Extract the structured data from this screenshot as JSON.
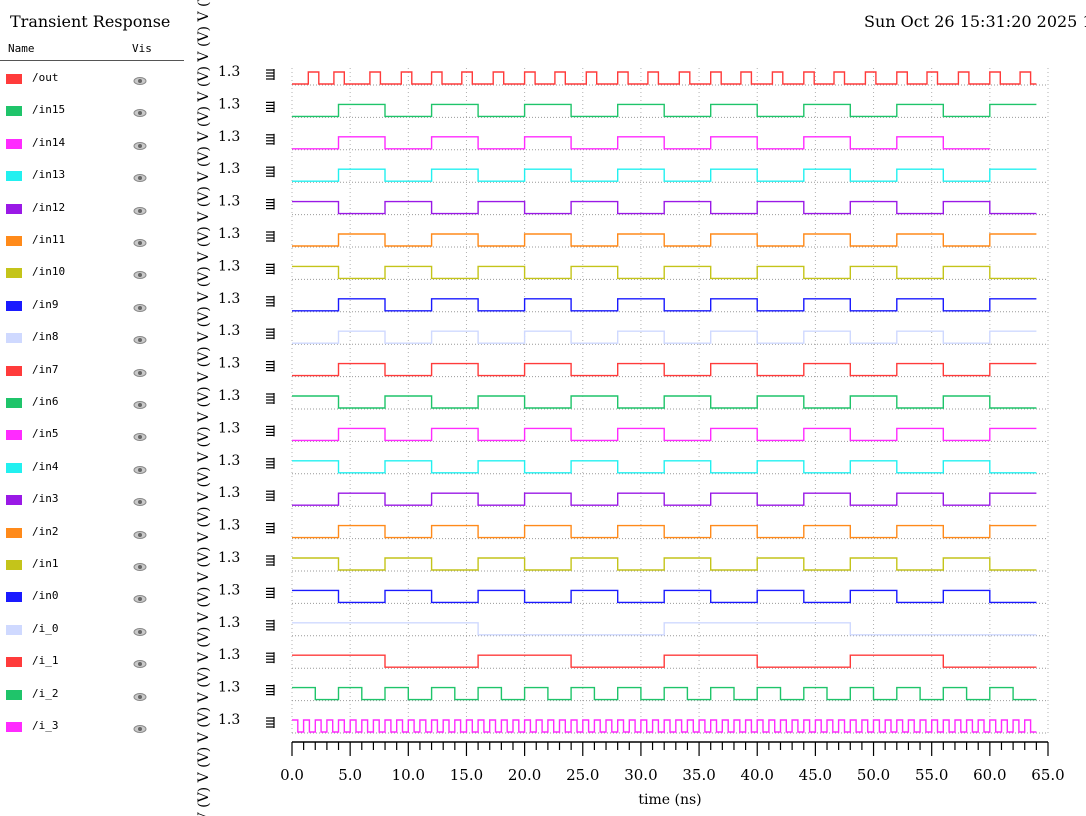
{
  "header": {
    "title": "Transient Response",
    "date": "Sun Oct 26 15:31:20 2025  1"
  },
  "legend": {
    "name_header": "Name",
    "vis_header": "Vis"
  },
  "colors": {
    "out": "#ff3b3b",
    "in15": "#1fc46a",
    "in14": "#ff2bff",
    "in13": "#22f0f0",
    "in12": "#9a19e6",
    "in11": "#ff8a1a",
    "in10": "#c4c41a",
    "in9": "#1a1aff",
    "in8": "#cfd9ff"
  },
  "chart_data": {
    "type": "line",
    "title": "Transient Response",
    "xlabel": "time (ns)",
    "ylabel_unit": "V (V)",
    "xlim": [
      0,
      65
    ],
    "x_ticks": [
      "0.0",
      "5.0",
      "10.0",
      "15.0",
      "20.0",
      "25.0",
      "30.0",
      "35.0",
      "40.0",
      "45.0",
      "50.0",
      "55.0",
      "60.0",
      "65.0"
    ],
    "row_tick_label": "1.3",
    "ylim": [
      0,
      1.3
    ],
    "grid": true,
    "series": [
      {
        "name": "/out",
        "color": "#ff3b3b",
        "period": 2.67,
        "high_start": 1.33,
        "end": 64.0,
        "rise_times": [
          1.4,
          3.6,
          6.7,
          9.4,
          12.0,
          14.6,
          17.3,
          20.0,
          22.6,
          25.3,
          28.0,
          30.6,
          33.3,
          36.0,
          38.6,
          41.3,
          44.0,
          46.6,
          49.3,
          52.0,
          54.6,
          57.3,
          60.0,
          62.6
        ]
      },
      {
        "name": "/in15",
        "color": "#1fc46a",
        "period": 8,
        "high_start": 4,
        "end": 64.0
      },
      {
        "name": "/in14",
        "color": "#ff2bff",
        "period": 8,
        "high_start": 4,
        "end": 60.0
      },
      {
        "name": "/in13",
        "color": "#22f0f0",
        "period": 8,
        "high_start": 4,
        "end": 64.0
      },
      {
        "name": "/in12",
        "color": "#9a19e6",
        "period": 8,
        "high_start": 0,
        "end": 64.0
      },
      {
        "name": "/in11",
        "color": "#ff8a1a",
        "period": 8,
        "high_start": 4,
        "end": 64.0
      },
      {
        "name": "/in10",
        "color": "#c4c41a",
        "period": 8,
        "high_start": 0,
        "end": 64.0
      },
      {
        "name": "/in9",
        "color": "#1a1aff",
        "period": 8,
        "high_start": 4,
        "end": 64.0
      },
      {
        "name": "/in8",
        "color": "#cfd9ff",
        "period": 8,
        "high_start": 4,
        "end": 64.0
      },
      {
        "name": "/in7",
        "color": "#ff3b3b",
        "period": 8,
        "high_start": 4,
        "end": 64.0
      },
      {
        "name": "/in6",
        "color": "#1fc46a",
        "period": 8,
        "high_start": 0,
        "end": 64.0
      },
      {
        "name": "/in5",
        "color": "#ff2bff",
        "period": 8,
        "high_start": 4,
        "end": 64.0
      },
      {
        "name": "/in4",
        "color": "#22f0f0",
        "period": 8,
        "high_start": 0,
        "end": 64.0
      },
      {
        "name": "/in3",
        "color": "#9a19e6",
        "period": 8,
        "high_start": 4,
        "end": 64.0
      },
      {
        "name": "/in2",
        "color": "#ff8a1a",
        "period": 8,
        "high_start": 4,
        "end": 64.0
      },
      {
        "name": "/in1",
        "color": "#c4c41a",
        "period": 8,
        "high_start": 0,
        "end": 64.0
      },
      {
        "name": "/in0",
        "color": "#1a1aff",
        "period": 8,
        "high_start": 0,
        "end": 64.0
      },
      {
        "name": "/i_0",
        "color": "#cfd9ff",
        "period": 32,
        "high_start": 0,
        "end": 64.0
      },
      {
        "name": "/i_1",
        "color": "#ff3b3b",
        "period": 16,
        "high_start": 0,
        "end": 64.0
      },
      {
        "name": "/i_2",
        "color": "#1fc46a",
        "period": 4,
        "high_start": 0,
        "end": 64.0
      },
      {
        "name": "/i_3",
        "color": "#ff2bff",
        "period": 1,
        "high_start": 0,
        "end": 64.0
      }
    ]
  }
}
